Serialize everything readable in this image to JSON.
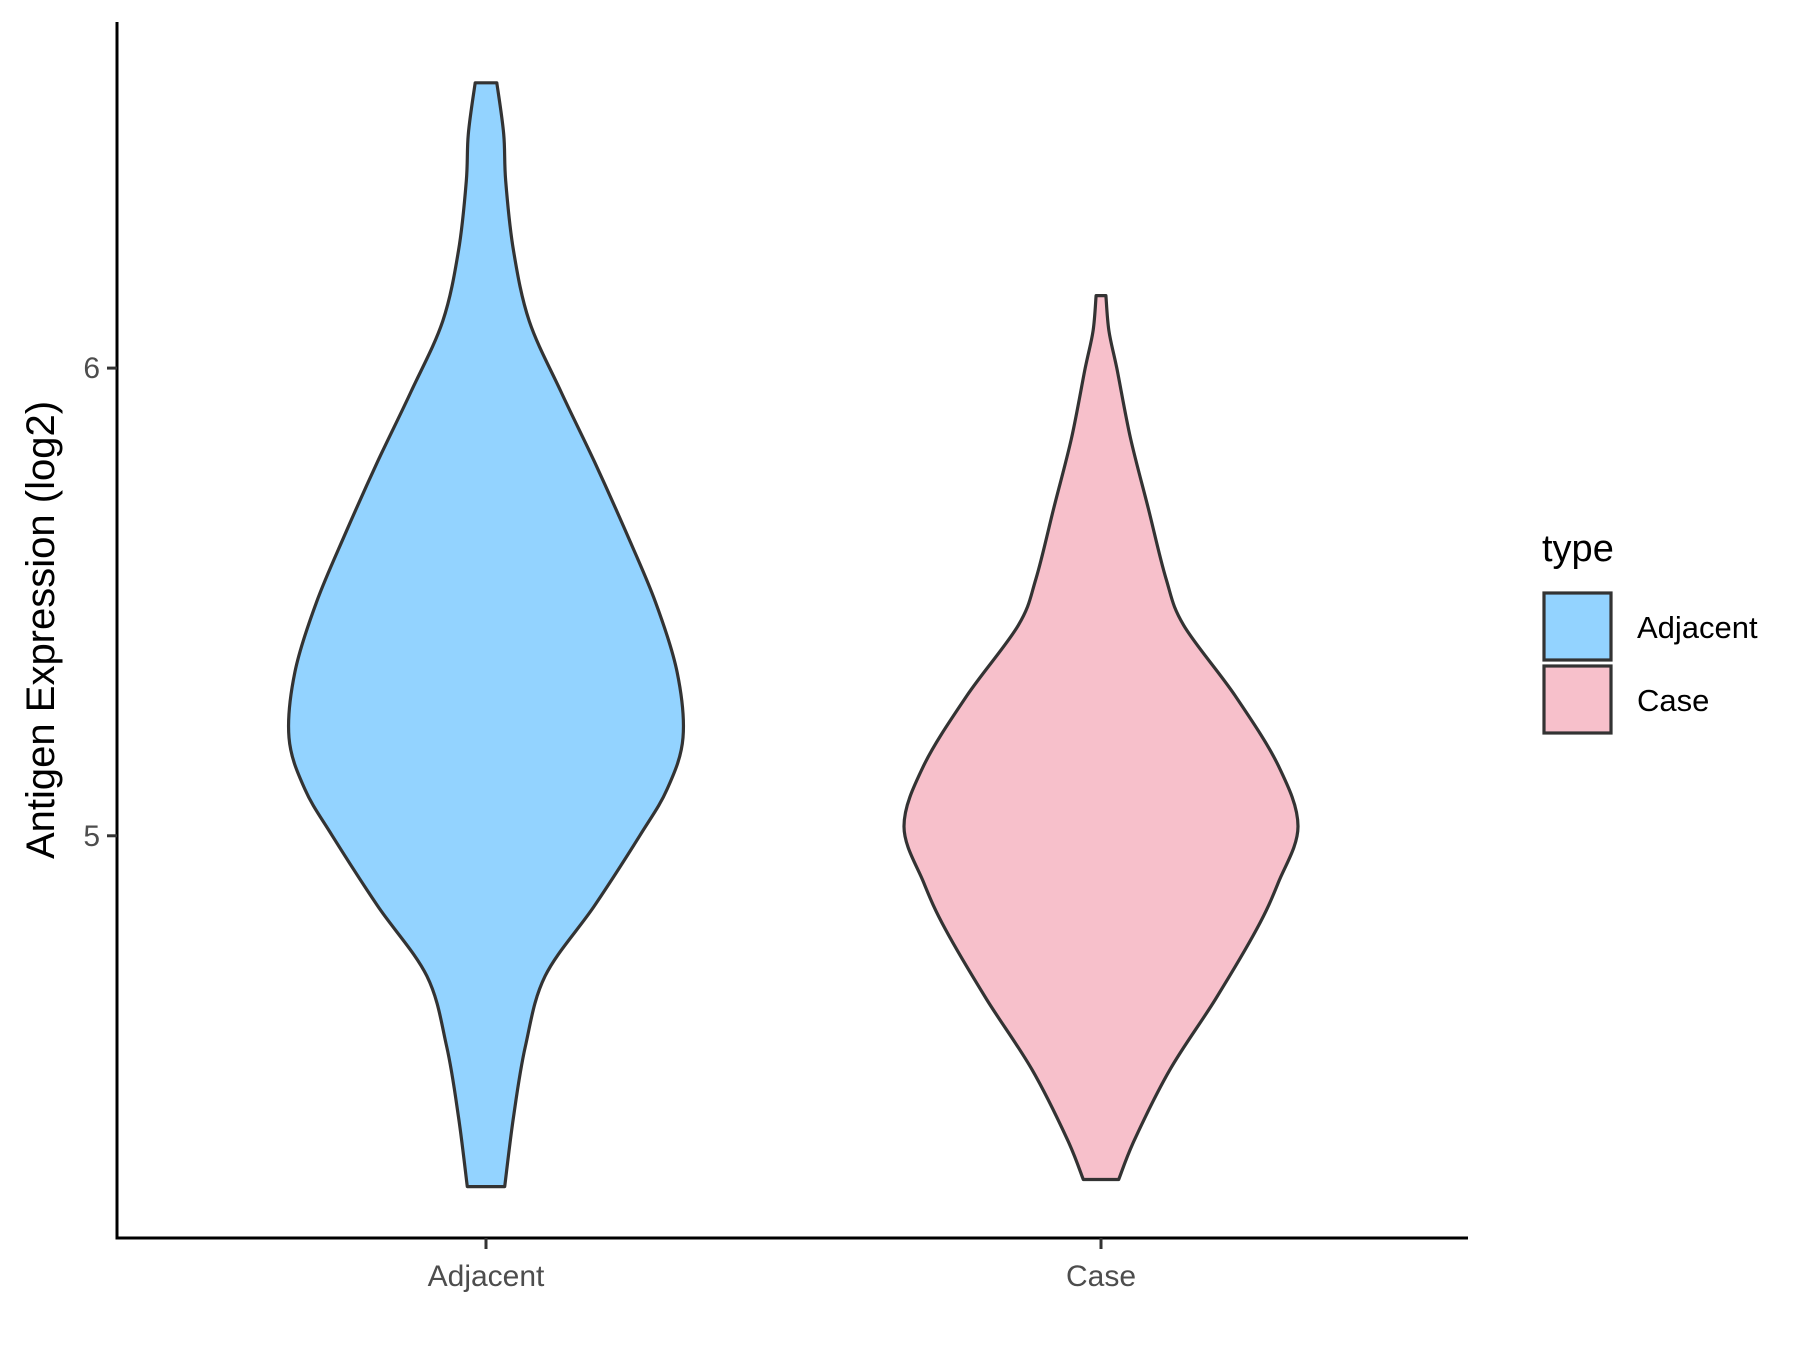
{
  "chart_data": {
    "type": "violin",
    "xlabel": "",
    "ylabel": "Antigen Expression (log2)",
    "ylim": [
      4.14,
      6.74
    ],
    "yticks": [
      5,
      6
    ],
    "categories": [
      "Adjacent",
      "Case"
    ],
    "legend": {
      "title": "type",
      "position": "right",
      "entries": [
        {
          "label": "Adjacent",
          "color": "#93d3ff"
        },
        {
          "label": "Case",
          "color": "#f7c0cb"
        }
      ]
    },
    "series": [
      {
        "category": "Adjacent",
        "color": "#93d3ff",
        "min": 4.25,
        "max": 6.61,
        "profile": [
          [
            4.25,
            0.095
          ],
          [
            4.4,
            0.14
          ],
          [
            4.55,
            0.2
          ],
          [
            4.7,
            0.3
          ],
          [
            4.85,
            0.55
          ],
          [
            5.0,
            0.78
          ],
          [
            5.1,
            0.92
          ],
          [
            5.21,
            1.0
          ],
          [
            5.35,
            0.97
          ],
          [
            5.5,
            0.86
          ],
          [
            5.65,
            0.71
          ],
          [
            5.8,
            0.55
          ],
          [
            5.95,
            0.38
          ],
          [
            6.1,
            0.22
          ],
          [
            6.25,
            0.14
          ],
          [
            6.4,
            0.1
          ],
          [
            6.5,
            0.09
          ],
          [
            6.61,
            0.055
          ]
        ]
      },
      {
        "category": "Case",
        "color": "#f7c0cb",
        "min": 4.265,
        "max": 6.155,
        "profile": [
          [
            4.265,
            0.09
          ],
          [
            4.35,
            0.17
          ],
          [
            4.5,
            0.35
          ],
          [
            4.65,
            0.58
          ],
          [
            4.8,
            0.79
          ],
          [
            4.9,
            0.9
          ],
          [
            5.02,
            1.0
          ],
          [
            5.15,
            0.9
          ],
          [
            5.3,
            0.68
          ],
          [
            5.45,
            0.42
          ],
          [
            5.55,
            0.33
          ],
          [
            5.7,
            0.24
          ],
          [
            5.85,
            0.15
          ],
          [
            6.0,
            0.08
          ],
          [
            6.08,
            0.04
          ],
          [
            6.155,
            0.025
          ]
        ]
      }
    ]
  }
}
